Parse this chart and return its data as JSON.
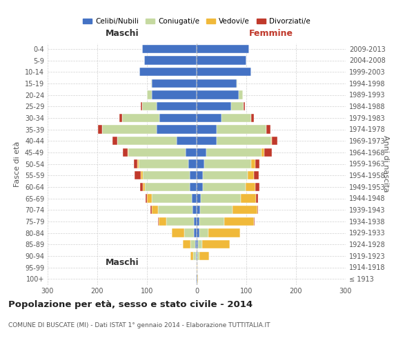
{
  "age_groups": [
    "100+",
    "95-99",
    "90-94",
    "85-89",
    "80-84",
    "75-79",
    "70-74",
    "65-69",
    "60-64",
    "55-59",
    "50-54",
    "45-49",
    "40-44",
    "35-39",
    "30-34",
    "25-29",
    "20-24",
    "15-19",
    "10-14",
    "5-9",
    "0-4"
  ],
  "birth_years": [
    "≤ 1913",
    "1914-1918",
    "1919-1923",
    "1924-1928",
    "1929-1933",
    "1934-1938",
    "1939-1943",
    "1944-1948",
    "1949-1953",
    "1954-1958",
    "1959-1963",
    "1964-1968",
    "1969-1973",
    "1974-1978",
    "1979-1983",
    "1984-1988",
    "1989-1993",
    "1994-1998",
    "1999-2003",
    "2004-2008",
    "2009-2013"
  ],
  "colors": {
    "celibi": "#4472C4",
    "coniugati": "#C5D9A0",
    "vedovi": "#F0B93A",
    "divorziati": "#C0392B"
  },
  "maschi": {
    "celibi": [
      1,
      0,
      2,
      3,
      5,
      6,
      8,
      10,
      14,
      14,
      16,
      22,
      40,
      80,
      75,
      80,
      90,
      90,
      115,
      105,
      110
    ],
    "coniugati": [
      0,
      0,
      5,
      10,
      20,
      55,
      70,
      80,
      90,
      95,
      100,
      115,
      120,
      110,
      75,
      30,
      10,
      2,
      0,
      0,
      0
    ],
    "vedovi": [
      0,
      0,
      5,
      15,
      25,
      15,
      12,
      10,
      5,
      4,
      3,
      2,
      0,
      0,
      0,
      0,
      0,
      0,
      0,
      0,
      0
    ],
    "divorziati": [
      0,
      0,
      0,
      0,
      0,
      2,
      3,
      3,
      5,
      12,
      8,
      10,
      10,
      8,
      5,
      3,
      0,
      0,
      0,
      0,
      0
    ]
  },
  "femmine": {
    "celibi": [
      1,
      0,
      2,
      3,
      5,
      5,
      7,
      9,
      13,
      13,
      15,
      20,
      40,
      40,
      50,
      70,
      85,
      80,
      110,
      100,
      105
    ],
    "coniugati": [
      0,
      0,
      3,
      8,
      18,
      50,
      65,
      80,
      85,
      90,
      95,
      110,
      110,
      100,
      60,
      25,
      8,
      2,
      0,
      0,
      0
    ],
    "vedovi": [
      2,
      2,
      20,
      55,
      65,
      60,
      50,
      30,
      20,
      12,
      8,
      6,
      2,
      0,
      0,
      0,
      0,
      0,
      0,
      0,
      0
    ],
    "divorziati": [
      0,
      0,
      0,
      0,
      0,
      2,
      2,
      5,
      8,
      10,
      8,
      15,
      10,
      8,
      5,
      2,
      0,
      0,
      0,
      0,
      0
    ]
  },
  "xlim": 300,
  "title": "Popolazione per età, sesso e stato civile - 2014",
  "subtitle": "COMUNE DI BUSCATE (MI) - Dati ISTAT 1° gennaio 2014 - Elaborazione TUTTITALIA.IT",
  "ylabel_left": "Fasce di età",
  "ylabel_right": "Anni di nascita",
  "header_left": "Maschi",
  "header_right": "Femmine",
  "legend_labels": [
    "Celibi/Nubili",
    "Coniugati/e",
    "Vedovi/e",
    "Divorziati/e"
  ],
  "background_color": "#ffffff",
  "grid_color": "#cccccc"
}
